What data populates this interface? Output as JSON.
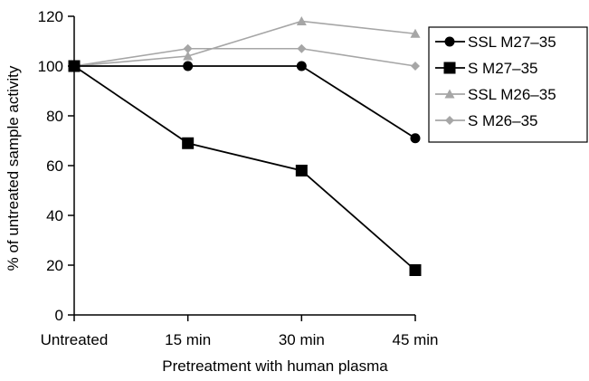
{
  "chart_data": {
    "type": "line",
    "title": "",
    "xlabel": "Pretreatment with human plasma",
    "ylabel": "% of untreated sample activity",
    "categories": [
      "Untreated",
      "15 min",
      "30 min",
      "45 min"
    ],
    "ylim": [
      0,
      120
    ],
    "yticks": [
      0,
      20,
      40,
      60,
      80,
      100,
      120
    ],
    "grid": false,
    "legend_position": "right",
    "series": [
      {
        "name": "SSL M27–35",
        "values": [
          100,
          100,
          100,
          71
        ],
        "color": "#000000",
        "marker": "circle"
      },
      {
        "name": "S M27–35",
        "values": [
          100,
          69,
          58,
          18
        ],
        "color": "#000000",
        "marker": "square"
      },
      {
        "name": "SSL M26–35",
        "values": [
          100,
          104,
          118,
          113
        ],
        "color": "#a6a6a6",
        "marker": "triangle"
      },
      {
        "name": "S M26–35",
        "values": [
          100,
          107,
          107,
          100
        ],
        "color": "#a6a6a6",
        "marker": "diamond"
      }
    ]
  }
}
